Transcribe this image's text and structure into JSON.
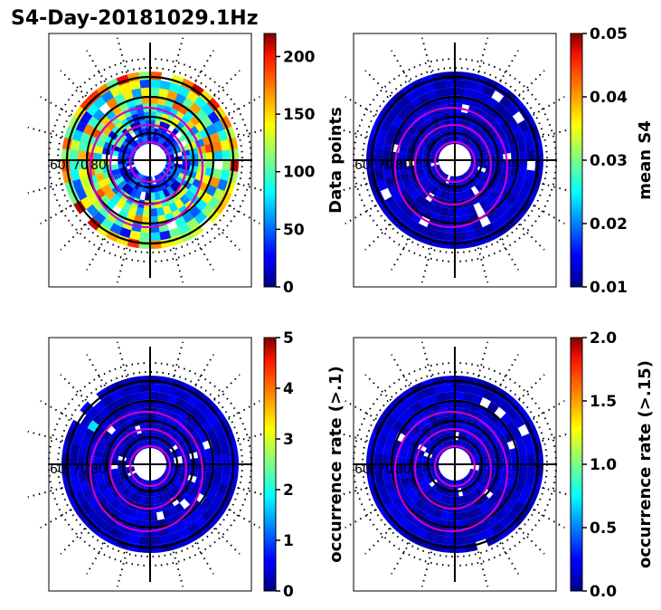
{
  "title": "S4-Day-20181029.1Hz",
  "colors": {
    "background": "#ffffff",
    "ring_outline": "#000000",
    "contour": "#cc00cc",
    "colormap": "jet"
  },
  "chart_data": [
    {
      "type": "heatmap",
      "projection": "polar",
      "colorbar": {
        "label": "Data points",
        "range": [
          0,
          220
        ],
        "ticks": [
          "0",
          "50",
          "100",
          "150",
          "200"
        ]
      },
      "ring_labels": [
        "60",
        "70",
        "80"
      ],
      "level": "high"
    },
    {
      "type": "heatmap",
      "projection": "polar",
      "colorbar": {
        "label": "mean S4",
        "range": [
          0.01,
          0.05
        ],
        "ticks": [
          "0.01",
          "0.02",
          "0.03",
          "0.04",
          "0.05"
        ]
      },
      "ring_labels": [
        "60",
        "70",
        "80"
      ],
      "level": "low"
    },
    {
      "type": "heatmap",
      "projection": "polar",
      "colorbar": {
        "label": "occurrence rate (>.1)",
        "range": [
          0,
          5
        ],
        "ticks": [
          "0",
          "1",
          "2",
          "3",
          "4",
          "5"
        ]
      },
      "ring_labels": [
        "60",
        "70",
        "80"
      ],
      "level": "low"
    },
    {
      "type": "heatmap",
      "projection": "polar",
      "colorbar": {
        "label": "occurrence rate (>.15)",
        "range": [
          0,
          2
        ],
        "ticks": [
          "0.0",
          "0.5",
          "1.0",
          "1.5",
          "2.0"
        ]
      },
      "ring_labels": [
        "60",
        "70",
        "80"
      ],
      "level": "low"
    }
  ]
}
